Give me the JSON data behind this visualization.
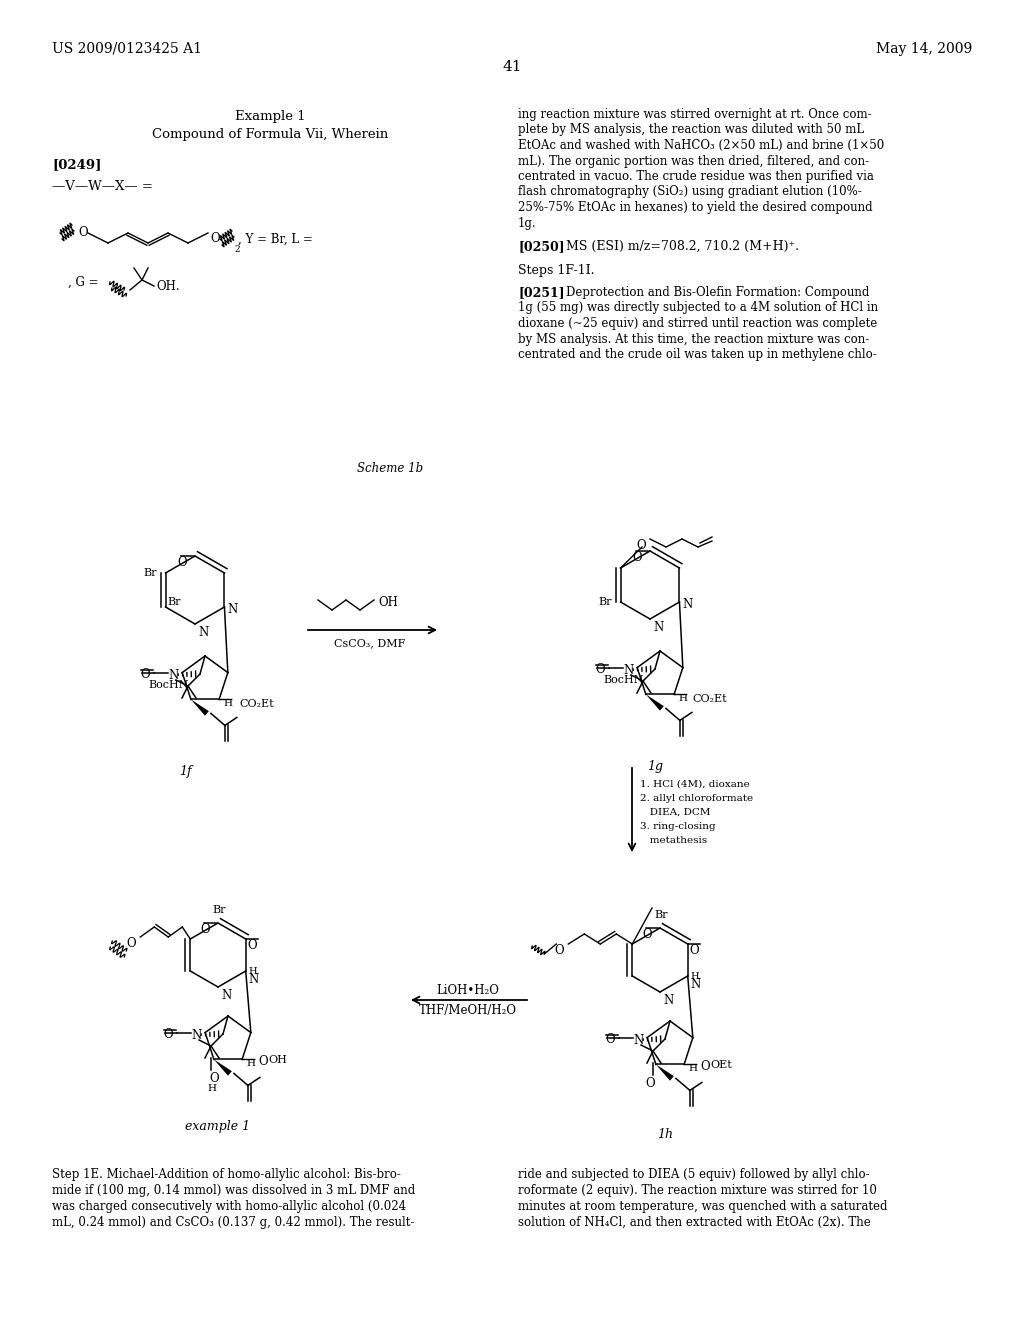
{
  "bg": "#ffffff",
  "header_left": "US 2009/0123425 A1",
  "header_right": "May 14, 2009",
  "page_num": "41",
  "ex_title": "Example 1",
  "ex_sub": "Compound of Formula Vii, Wherein",
  "para249": "[0249]",
  "formula_vw": "—V—W—X— =",
  "y_br_l": ", Y = Br, L =",
  "g_eq": ", G =",
  "oh_dot": "OH.",
  "scheme_lb": "Scheme 1b",
  "lbl_1f": "1f",
  "lbl_1g": "1g",
  "lbl_1h": "1h",
  "lbl_ex1": "example 1",
  "reagent1a": "OH",
  "reagent1b": "CsCO₃, DMF",
  "reag2_1": "1. HCl (4M), dioxane",
  "reag2_2": "2. allyl chloroformate",
  "reag2_3": "   DIEA, DCM",
  "reag2_4": "3. ring-closing",
  "reag2_5": "   metathesis",
  "reag3a": "LiOH•H₂O",
  "reag3b": "THF/MeOH/H₂O",
  "p250_lbl": "[0250]",
  "p250_txt": "MS (ESI) m/z=708.2, 710.2 (M+H)⁺.",
  "steps": "Steps 1F-1I.",
  "p251_lbl": "[0251]",
  "p251_txt": "Deprotection and Bis-Olefin Formation: Compound 1g (55 mg) was directly subjected to a 4M solution of HCl in dioxane (~25 equiv) and stirred until reaction was complete by MS analysis. At this time, the reaction mixture was con-centrated and the crude oil was taken up in methylene chlo-",
  "rcol1": "ing reaction mixture was stirred overnight at rt. Once com-plete by MS analysis, the reaction was diluted with 50 mL EtOAc and washed with NaHCO₃ (2×50 mL) and brine (1×50 mL). The organic portion was then dried, filtered, and con-centrated in vacuo. The crude residue was then purified via flash chromatography (SiO₂) using gradiant elution (10%-25%-75% EtOAc in hexanes) to yield the desired compound 1g.",
  "p250_sep": "",
  "bot_left": "Step 1E. Michael-Addition of homo-allylic alcohol: Bis-bro-\nmide if (100 mg, 0.14 mmol) was dissolved in 3 mL DMF and\nwas charged consecutively with homo-allylic alcohol (0.024\nmL, 0.24 mmol) and CsCO₃ (0.137 g, 0.42 mmol). The result-",
  "bot_right": "ride and subjected to DIEA (5 equiv) followed by allyl chlo-\nroformate (2 equiv). The reaction mixture was stirred for 10\nminutes at room temperature, was quenched with a saturated\nsolution of NH₄Cl, and then extracted with EtOAc (2x). The"
}
